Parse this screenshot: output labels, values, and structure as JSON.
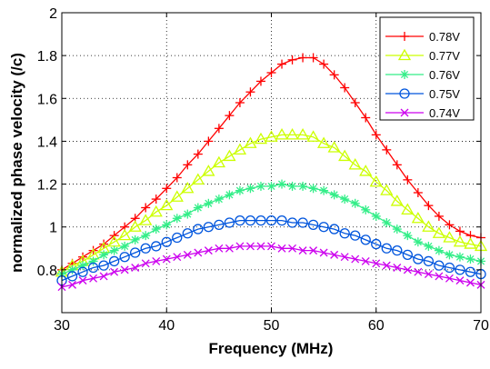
{
  "chart_data": {
    "type": "line",
    "title": "",
    "xlabel": "Frequency (MHz)",
    "ylabel": "normalized phase velocity (/c)",
    "xlim": [
      30,
      70
    ],
    "ylim": [
      0.6,
      2.0
    ],
    "xticks": [
      30,
      40,
      50,
      60,
      70
    ],
    "yticks": [
      0.8,
      1.0,
      1.2,
      1.4,
      1.6,
      1.8,
      2.0
    ],
    "xtick_labels": [
      "30",
      "40",
      "50",
      "60",
      "70"
    ],
    "ytick_labels": [
      "0.8",
      "1",
      "1.2",
      "1.4",
      "1.6",
      "1.8",
      "2"
    ],
    "grid": "dotted",
    "legend_position": "top-right",
    "series": [
      {
        "name": "0.78V",
        "color": "#ff0000",
        "marker": "plus",
        "x": [
          30,
          31,
          32,
          33,
          34,
          35,
          36,
          37,
          38,
          39,
          40,
          41,
          42,
          43,
          44,
          45,
          46,
          47,
          48,
          49,
          50,
          51,
          52,
          53,
          54,
          55,
          56,
          57,
          58,
          59,
          60,
          61,
          62,
          63,
          64,
          65,
          66,
          67,
          68,
          69,
          70
        ],
        "y": [
          0.8,
          0.83,
          0.86,
          0.89,
          0.92,
          0.96,
          1.0,
          1.04,
          1.09,
          1.13,
          1.18,
          1.23,
          1.29,
          1.34,
          1.4,
          1.46,
          1.52,
          1.58,
          1.63,
          1.68,
          1.72,
          1.76,
          1.78,
          1.79,
          1.79,
          1.76,
          1.71,
          1.65,
          1.58,
          1.51,
          1.43,
          1.36,
          1.29,
          1.22,
          1.16,
          1.1,
          1.05,
          1.01,
          0.98,
          0.96,
          0.95
        ]
      },
      {
        "name": "0.77V",
        "color": "#ccff00",
        "marker": "triangle",
        "x": [
          30,
          31,
          32,
          33,
          34,
          35,
          36,
          37,
          38,
          39,
          40,
          41,
          42,
          43,
          44,
          45,
          46,
          47,
          48,
          49,
          50,
          51,
          52,
          53,
          54,
          55,
          56,
          57,
          58,
          59,
          60,
          61,
          62,
          63,
          64,
          65,
          66,
          67,
          68,
          69,
          70
        ],
        "y": [
          0.79,
          0.82,
          0.84,
          0.87,
          0.9,
          0.93,
          0.96,
          1.0,
          1.03,
          1.07,
          1.1,
          1.14,
          1.18,
          1.22,
          1.26,
          1.3,
          1.33,
          1.36,
          1.39,
          1.41,
          1.42,
          1.43,
          1.43,
          1.43,
          1.42,
          1.39,
          1.37,
          1.33,
          1.29,
          1.26,
          1.21,
          1.17,
          1.12,
          1.08,
          1.04,
          1.0,
          0.97,
          0.95,
          0.93,
          0.92,
          0.91
        ]
      },
      {
        "name": "0.76V",
        "color": "#33ee88",
        "marker": "star",
        "x": [
          30,
          31,
          32,
          33,
          34,
          35,
          36,
          37,
          38,
          39,
          40,
          41,
          42,
          43,
          44,
          45,
          46,
          47,
          48,
          49,
          50,
          51,
          52,
          53,
          54,
          55,
          56,
          57,
          58,
          59,
          60,
          61,
          62,
          63,
          64,
          65,
          66,
          67,
          68,
          69,
          70
        ],
        "y": [
          0.78,
          0.8,
          0.82,
          0.84,
          0.87,
          0.89,
          0.91,
          0.94,
          0.96,
          0.99,
          1.01,
          1.04,
          1.06,
          1.09,
          1.11,
          1.13,
          1.15,
          1.17,
          1.18,
          1.19,
          1.19,
          1.2,
          1.19,
          1.19,
          1.18,
          1.17,
          1.15,
          1.13,
          1.11,
          1.08,
          1.05,
          1.02,
          0.99,
          0.96,
          0.93,
          0.91,
          0.89,
          0.87,
          0.86,
          0.85,
          0.84
        ]
      },
      {
        "name": "0.75V",
        "color": "#0055dd",
        "marker": "circle",
        "x": [
          30,
          31,
          32,
          33,
          34,
          35,
          36,
          37,
          38,
          39,
          40,
          41,
          42,
          43,
          44,
          45,
          46,
          47,
          48,
          49,
          50,
          51,
          52,
          53,
          54,
          55,
          56,
          57,
          58,
          59,
          60,
          61,
          62,
          63,
          64,
          65,
          66,
          67,
          68,
          69,
          70
        ],
        "y": [
          0.75,
          0.77,
          0.79,
          0.81,
          0.82,
          0.84,
          0.86,
          0.88,
          0.9,
          0.91,
          0.93,
          0.95,
          0.97,
          0.99,
          1.0,
          1.01,
          1.02,
          1.03,
          1.03,
          1.03,
          1.03,
          1.03,
          1.02,
          1.02,
          1.01,
          1.0,
          0.99,
          0.97,
          0.96,
          0.94,
          0.92,
          0.9,
          0.89,
          0.87,
          0.85,
          0.84,
          0.82,
          0.81,
          0.8,
          0.79,
          0.78
        ]
      },
      {
        "name": "0.74V",
        "color": "#cc00ee",
        "marker": "x",
        "x": [
          30,
          31,
          32,
          33,
          34,
          35,
          36,
          37,
          38,
          39,
          40,
          41,
          42,
          43,
          44,
          45,
          46,
          47,
          48,
          49,
          50,
          51,
          52,
          53,
          54,
          55,
          56,
          57,
          58,
          59,
          60,
          61,
          62,
          63,
          64,
          65,
          66,
          67,
          68,
          69,
          70
        ],
        "y": [
          0.72,
          0.73,
          0.75,
          0.76,
          0.77,
          0.79,
          0.8,
          0.81,
          0.83,
          0.84,
          0.85,
          0.86,
          0.87,
          0.88,
          0.89,
          0.9,
          0.9,
          0.91,
          0.91,
          0.91,
          0.91,
          0.9,
          0.9,
          0.89,
          0.89,
          0.88,
          0.87,
          0.86,
          0.85,
          0.84,
          0.83,
          0.82,
          0.81,
          0.8,
          0.79,
          0.78,
          0.77,
          0.76,
          0.75,
          0.74,
          0.73
        ]
      }
    ]
  }
}
